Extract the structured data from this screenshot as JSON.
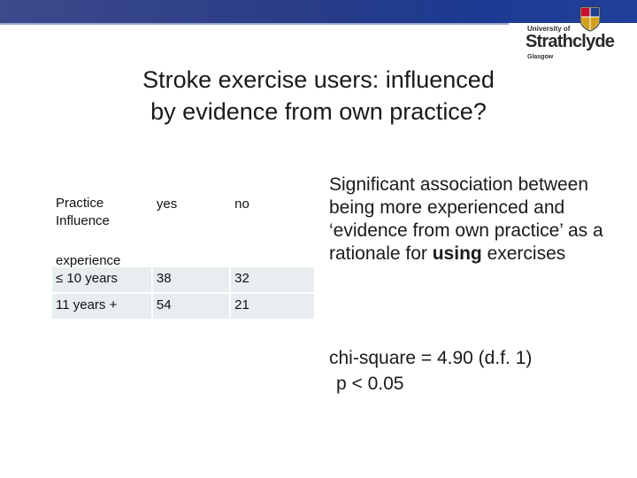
{
  "logo": {
    "university_of": "University of",
    "name": "Strathclyde",
    "city": "Glasgow"
  },
  "title": {
    "line1": "Stroke exercise users:  influenced",
    "line2": "by evidence from own practice?"
  },
  "table": {
    "header": {
      "practice_influence": "Practice Influence",
      "experience": "experience",
      "yes": "yes",
      "no": "no"
    },
    "rows": [
      {
        "label": "≤ 10 years",
        "yes": "38",
        "no": "32"
      },
      {
        "label": "11 years +",
        "yes": "54",
        "no": "21"
      }
    ]
  },
  "finding": {
    "text_before": "Significant association between being more experienced and ‘evidence from own practice’ as a rationale for ",
    "emphasis": "using",
    "text_after": " exercises"
  },
  "stats": {
    "chi_square": "chi-square = 4.90 (d.f. 1)",
    "p_value": "p < 0.05"
  },
  "colors": {
    "header_bar": "#2a3d86",
    "table_row_fill": "#e8eef0"
  }
}
